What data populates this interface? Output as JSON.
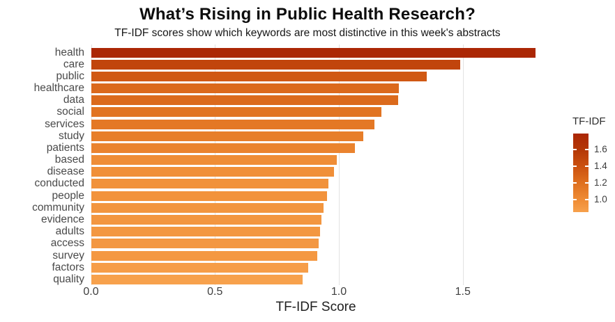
{
  "chart_data": {
    "type": "bar",
    "orientation": "horizontal",
    "title": "What’s Rising in Public Health Research?",
    "subtitle": "TF-IDF scores show which keywords are most distinctive in this week's abstracts",
    "xlabel": "TF-IDF Score",
    "categories": [
      "health",
      "care",
      "public",
      "healthcare",
      "data",
      "social",
      "services",
      "study",
      "patients",
      "based",
      "disease",
      "conducted",
      "people",
      "community",
      "evidence",
      "adults",
      "access",
      "survey",
      "factors",
      "quality"
    ],
    "values": [
      1.793,
      1.49,
      1.354,
      1.242,
      1.238,
      1.171,
      1.143,
      1.099,
      1.064,
      0.992,
      0.98,
      0.958,
      0.952,
      0.938,
      0.93,
      0.924,
      0.918,
      0.914,
      0.876,
      0.853
    ],
    "xlim": [
      0,
      1.817
    ],
    "grid": true,
    "x_ticks": {
      "values": [
        0.0,
        0.5,
        1.0,
        1.5
      ],
      "labels": [
        "0.0",
        "0.5",
        "1.0",
        "1.5"
      ]
    },
    "legend": {
      "title": "TF-IDF",
      "position": "right",
      "domain": [
        0.853,
        1.793
      ],
      "tick_values": [
        1.6,
        1.4,
        1.2,
        1.0
      ],
      "tick_labels": [
        "1.6",
        "1.4",
        "1.2",
        "1.0"
      ]
    },
    "color_scale": {
      "stops": [
        [
          0.85,
          "#f7a14c"
        ],
        [
          1.0,
          "#ef8c35"
        ],
        [
          1.2,
          "#df701f"
        ],
        [
          1.4,
          "#cb5110"
        ],
        [
          1.6,
          "#b43706"
        ],
        [
          1.8,
          "#ab2605"
        ]
      ]
    },
    "colors": {
      "gridline": "#e2e2e2",
      "title_text": "#0d0d0d",
      "axis_text": "#3f3f3f",
      "category_text": "#4a4a4a"
    }
  }
}
